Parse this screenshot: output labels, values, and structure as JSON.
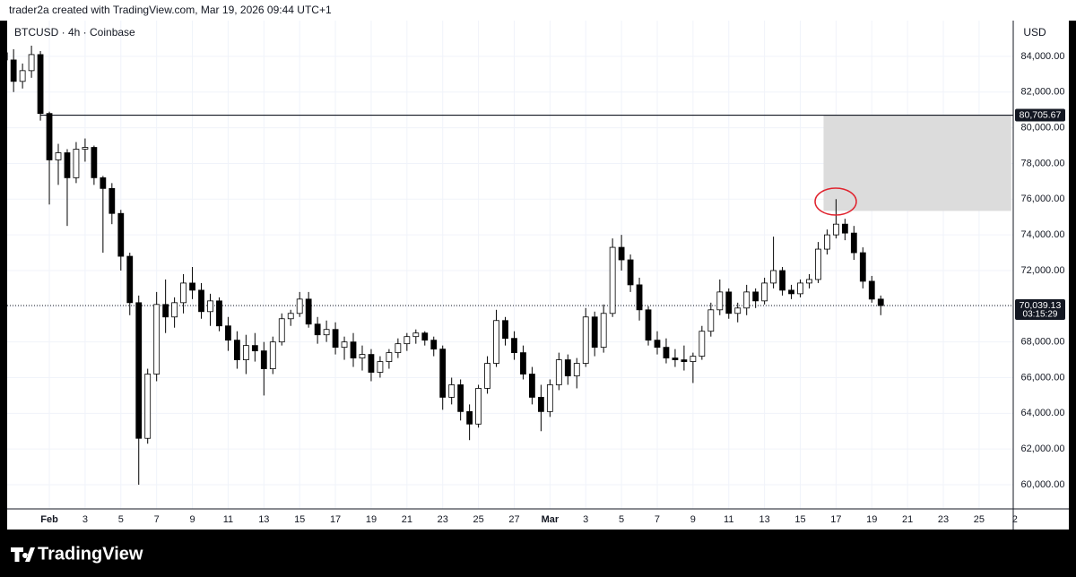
{
  "header": {
    "text": "trader2a created with TradingView.com, Mar 19, 2026 09:44 UTC+1"
  },
  "chart_data": {
    "type": "candlestick",
    "title": "BTCUSD · 4h · Coinbase",
    "currency": "USD",
    "up_color": "#ffffff",
    "down_color": "#000000",
    "grid": true,
    "x": [
      -2.5,
      -2,
      -1.5,
      -1,
      -0.5,
      0,
      0.5,
      1,
      1.5,
      2,
      2.5,
      3,
      3.5,
      4,
      4.5,
      5,
      5.5,
      6,
      6.5,
      7,
      7.5,
      8,
      8.5,
      9,
      9.5,
      10,
      10.5,
      11,
      11.5,
      12,
      12.5,
      13,
      13.5,
      14,
      14.5,
      15,
      15.5,
      16,
      16.5,
      17,
      17.5,
      18,
      18.5,
      19,
      19.5,
      20,
      20.5,
      21,
      21.5,
      22,
      22.5,
      23,
      23.5,
      24,
      24.5,
      25,
      25.5,
      26,
      26.5,
      27,
      27.5,
      28,
      28.5,
      29,
      29.5,
      30,
      30.5,
      31,
      31.5,
      32,
      32.5,
      33,
      33.5,
      34,
      34.5,
      35,
      35.5,
      36,
      36.5,
      37,
      37.5,
      38,
      38.5,
      39,
      39.5,
      40,
      40.5,
      41,
      41.5,
      42,
      42.5,
      43,
      43.5,
      44,
      44.5,
      45,
      45.5,
      46,
      46.5
    ],
    "ohlc": [
      [
        84200,
        84800,
        83500,
        83800
      ],
      [
        83800,
        84400,
        82000,
        82600
      ],
      [
        82600,
        83600,
        82200,
        83200
      ],
      [
        83200,
        84600,
        82800,
        84100
      ],
      [
        84100,
        84300,
        80400,
        80800
      ],
      [
        80800,
        80900,
        75700,
        78200
      ],
      [
        78200,
        79100,
        76800,
        78600
      ],
      [
        78600,
        78800,
        74500,
        77200
      ],
      [
        77200,
        79200,
        76900,
        78800
      ],
      [
        78800,
        79400,
        78100,
        78900
      ],
      [
        78900,
        79000,
        76800,
        77200
      ],
      [
        77200,
        77300,
        73000,
        76600
      ],
      [
        76600,
        76900,
        74600,
        75200
      ],
      [
        75200,
        75400,
        72000,
        72800
      ],
      [
        72800,
        73000,
        69500,
        70200
      ],
      [
        70200,
        70600,
        60000,
        62600
      ],
      [
        62600,
        66500,
        62300,
        66200
      ],
      [
        66200,
        70800,
        65800,
        70100
      ],
      [
        70100,
        71500,
        68500,
        69400
      ],
      [
        69400,
        70500,
        68800,
        70200
      ],
      [
        70200,
        71800,
        69600,
        71300
      ],
      [
        71300,
        72200,
        70400,
        70900
      ],
      [
        70900,
        71300,
        69300,
        69700
      ],
      [
        69700,
        70700,
        68900,
        70300
      ],
      [
        70300,
        70500,
        68600,
        68900
      ],
      [
        68900,
        69400,
        67500,
        68100
      ],
      [
        68100,
        68600,
        66500,
        67000
      ],
      [
        67000,
        68400,
        66200,
        67800
      ],
      [
        67800,
        68500,
        66900,
        67500
      ],
      [
        67500,
        68000,
        65000,
        66500
      ],
      [
        66500,
        68300,
        66200,
        68000
      ],
      [
        68000,
        69600,
        67800,
        69300
      ],
      [
        69300,
        69800,
        68900,
        69600
      ],
      [
        69600,
        70800,
        69400,
        70400
      ],
      [
        70400,
        70800,
        68800,
        69000
      ],
      [
        69000,
        69400,
        67900,
        68400
      ],
      [
        68400,
        69200,
        68000,
        68700
      ],
      [
        68700,
        69100,
        67300,
        67700
      ],
      [
        67700,
        68300,
        67000,
        68000
      ],
      [
        68000,
        68500,
        66600,
        67100
      ],
      [
        67100,
        67800,
        66400,
        67300
      ],
      [
        67300,
        67600,
        65800,
        66300
      ],
      [
        66300,
        67200,
        66000,
        66900
      ],
      [
        66900,
        67600,
        66500,
        67400
      ],
      [
        67400,
        68200,
        67100,
        67900
      ],
      [
        67900,
        68500,
        67500,
        68300
      ],
      [
        68300,
        68700,
        67900,
        68500
      ],
      [
        68500,
        68600,
        67800,
        68100
      ],
      [
        68100,
        68300,
        67200,
        67600
      ],
      [
        67600,
        67800,
        64200,
        64900
      ],
      [
        64900,
        66000,
        64500,
        65600
      ],
      [
        65600,
        65900,
        63600,
        64100
      ],
      [
        64100,
        64500,
        62500,
        63400
      ],
      [
        63400,
        65600,
        63200,
        65400
      ],
      [
        65400,
        67200,
        65100,
        66800
      ],
      [
        66800,
        69800,
        66600,
        69200
      ],
      [
        69200,
        69400,
        67800,
        68200
      ],
      [
        68200,
        68600,
        67000,
        67400
      ],
      [
        67400,
        67800,
        65900,
        66200
      ],
      [
        66200,
        66600,
        64500,
        64900
      ],
      [
        64900,
        65600,
        63000,
        64100
      ],
      [
        64100,
        65900,
        63800,
        65600
      ],
      [
        65600,
        67400,
        65300,
        67000
      ],
      [
        67000,
        67300,
        65600,
        66100
      ],
      [
        66100,
        67100,
        65400,
        66800
      ],
      [
        66800,
        69900,
        66600,
        69400
      ],
      [
        69400,
        69700,
        67200,
        67700
      ],
      [
        67700,
        70100,
        67400,
        69600
      ],
      [
        69600,
        73800,
        69400,
        73300
      ],
      [
        73300,
        74000,
        72000,
        72600
      ],
      [
        72600,
        72900,
        70800,
        71200
      ],
      [
        71200,
        71600,
        69200,
        69800
      ],
      [
        69800,
        70000,
        67800,
        68100
      ],
      [
        68100,
        68600,
        67300,
        67700
      ],
      [
        67700,
        68200,
        66800,
        67100
      ],
      [
        67100,
        67600,
        66600,
        67000
      ],
      [
        67000,
        67800,
        66400,
        66900
      ],
      [
        66900,
        67400,
        65700,
        67200
      ],
      [
        67200,
        68900,
        67000,
        68600
      ],
      [
        68600,
        70200,
        68300,
        69800
      ],
      [
        69800,
        71500,
        69500,
        70800
      ],
      [
        70800,
        71000,
        69300,
        69600
      ],
      [
        69600,
        70200,
        69100,
        69900
      ],
      [
        69900,
        71200,
        69500,
        70800
      ],
      [
        70800,
        71000,
        69900,
        70300
      ],
      [
        70300,
        71600,
        70100,
        71300
      ],
      [
        71300,
        73900,
        71000,
        72000
      ],
      [
        72000,
        72200,
        70600,
        70900
      ],
      [
        70900,
        71200,
        70400,
        70700
      ],
      [
        70700,
        71500,
        70500,
        71300
      ],
      [
        71300,
        71800,
        71000,
        71500
      ],
      [
        71500,
        73600,
        71300,
        73200
      ],
      [
        73200,
        74300,
        72900,
        74000
      ],
      [
        74000,
        76000,
        73800,
        74600
      ],
      [
        74600,
        74900,
        73700,
        74100
      ],
      [
        74100,
        74500,
        72600,
        73000
      ],
      [
        73000,
        73300,
        71000,
        71400
      ],
      [
        71400,
        71700,
        70200,
        70400
      ],
      [
        70400,
        70600,
        69500,
        70039.13
      ]
    ],
    "last_price": {
      "value": 70039.13,
      "label": "70,039.13",
      "countdown": "03:15:29"
    },
    "level": {
      "value": 80705.67,
      "label": "80,705.67",
      "x_start": -0.5
    },
    "zone": {
      "x": [
        43.3,
        53.8
      ],
      "y": [
        75340,
        80705.67
      ]
    },
    "xlim": [
      -2.76,
      53.91
    ],
    "ylim": [
      58646,
      86004
    ],
    "xticks": [
      {
        "value": 0,
        "label": "Feb"
      },
      {
        "value": 2,
        "label": "3"
      },
      {
        "value": 4,
        "label": "5"
      },
      {
        "value": 6,
        "label": "7"
      },
      {
        "value": 8,
        "label": "9"
      },
      {
        "value": 10,
        "label": "11"
      },
      {
        "value": 12,
        "label": "13"
      },
      {
        "value": 14,
        "label": "15"
      },
      {
        "value": 16,
        "label": "17"
      },
      {
        "value": 18,
        "label": "19"
      },
      {
        "value": 20,
        "label": "21"
      },
      {
        "value": 22,
        "label": "23"
      },
      {
        "value": 24,
        "label": "25"
      },
      {
        "value": 26,
        "label": "27"
      },
      {
        "value": 28,
        "label": "Mar"
      },
      {
        "value": 30,
        "label": "3"
      },
      {
        "value": 32,
        "label": "5"
      },
      {
        "value": 34,
        "label": "7"
      },
      {
        "value": 36,
        "label": "9"
      },
      {
        "value": 38,
        "label": "11"
      },
      {
        "value": 40,
        "label": "13"
      },
      {
        "value": 42,
        "label": "15"
      },
      {
        "value": 44,
        "label": "17"
      },
      {
        "value": 46,
        "label": "19"
      },
      {
        "value": 48,
        "label": "21"
      },
      {
        "value": 50,
        "label": "23"
      },
      {
        "value": 52,
        "label": "25"
      },
      {
        "value": 54,
        "label": "2"
      }
    ],
    "yticks": [
      {
        "value": 60000,
        "label": "60,000.00"
      },
      {
        "value": 62000,
        "label": "62,000.00"
      },
      {
        "value": 64000,
        "label": "64,000.00"
      },
      {
        "value": 66000,
        "label": "66,000.00"
      },
      {
        "value": 68000,
        "label": "68,000.00"
      },
      {
        "value": 70000,
        "label": "70,000.00"
      },
      {
        "value": 72000,
        "label": "72,000.00"
      },
      {
        "value": 74000,
        "label": "74,000.00"
      },
      {
        "value": 76000,
        "label": "76,000.00"
      },
      {
        "value": 78000,
        "label": "78,000.00"
      },
      {
        "value": 80000,
        "label": "80,000.00"
      },
      {
        "value": 82000,
        "label": "82,000.00"
      },
      {
        "value": 84000,
        "label": "84,000.00"
      }
    ]
  },
  "footer": {
    "brand": "TradingView"
  }
}
